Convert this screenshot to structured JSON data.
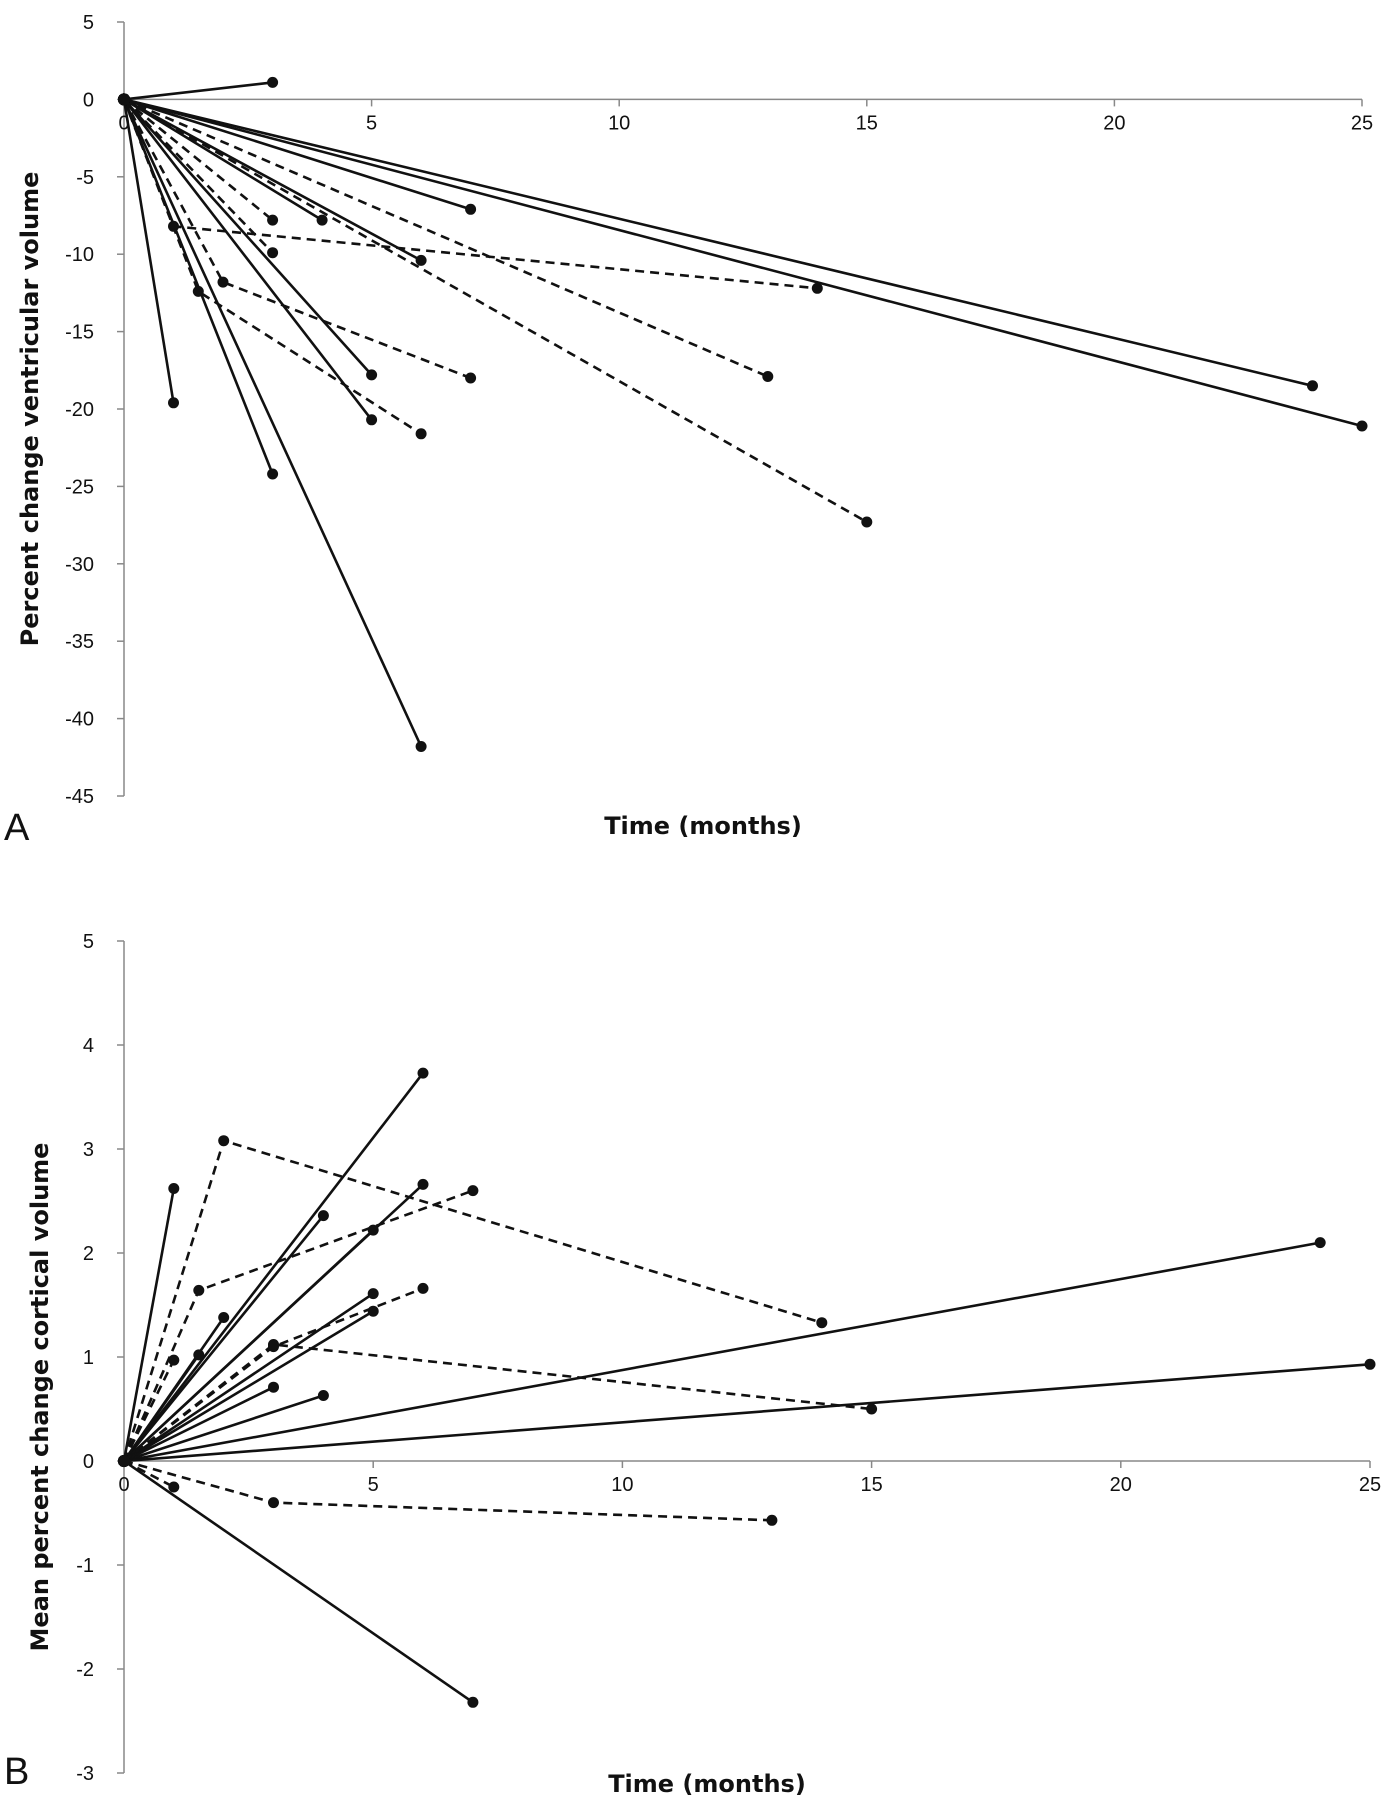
{
  "chart_data": [
    {
      "type": "line",
      "panel_label": "A",
      "xlabel": "Time (months)",
      "ylabel": "Percent change ventricular volume",
      "xlim": [
        0,
        25
      ],
      "ylim": [
        -45,
        5
      ],
      "x_ticks": [
        0,
        5,
        10,
        15,
        20,
        25
      ],
      "y_ticks": [
        5,
        0,
        -5,
        -10,
        -15,
        -20,
        -25,
        -30,
        -35,
        -40,
        -45
      ],
      "x_tick_labels": [
        "0",
        "5",
        "10",
        "15",
        "20",
        "25"
      ],
      "y_tick_labels": [
        "5",
        "0",
        "-5",
        "-10",
        "-15",
        "-20",
        "-25",
        "-30",
        "-35",
        "-40",
        "-45"
      ],
      "grid": false,
      "series": [
        {
          "style": "solid",
          "x": [
            0,
            3
          ],
          "y": [
            0,
            1.1
          ]
        },
        {
          "style": "solid",
          "x": [
            0,
            1
          ],
          "y": [
            0,
            -19.6
          ]
        },
        {
          "style": "solid",
          "x": [
            0,
            3
          ],
          "y": [
            0,
            -24.2
          ]
        },
        {
          "style": "solid",
          "x": [
            0,
            6
          ],
          "y": [
            0,
            -41.8
          ]
        },
        {
          "style": "solid",
          "x": [
            0,
            4
          ],
          "y": [
            0,
            -7.8
          ]
        },
        {
          "style": "solid",
          "x": [
            0,
            7
          ],
          "y": [
            0,
            -7.1
          ]
        },
        {
          "style": "solid",
          "x": [
            0,
            6
          ],
          "y": [
            0,
            -10.4
          ]
        },
        {
          "style": "solid",
          "x": [
            0,
            5
          ],
          "y": [
            0,
            -17.8
          ]
        },
        {
          "style": "solid",
          "x": [
            0,
            5
          ],
          "y": [
            0,
            -20.7
          ]
        },
        {
          "style": "solid",
          "x": [
            0,
            24
          ],
          "y": [
            0,
            -18.5
          ]
        },
        {
          "style": "solid",
          "x": [
            0,
            25
          ],
          "y": [
            0,
            -21.1
          ]
        },
        {
          "style": "dashed",
          "x": [
            0,
            3
          ],
          "y": [
            0,
            -7.8
          ]
        },
        {
          "style": "dashed",
          "x": [
            0,
            3
          ],
          "y": [
            0,
            -9.9
          ]
        },
        {
          "style": "dashed",
          "x": [
            0,
            1,
            14
          ],
          "y": [
            0,
            -8.2,
            -12.2
          ]
        },
        {
          "style": "dashed",
          "x": [
            0,
            1.5,
            6
          ],
          "y": [
            0,
            -12.4,
            -21.6
          ]
        },
        {
          "style": "dashed",
          "x": [
            0,
            2,
            7
          ],
          "y": [
            0,
            -11.8,
            -18.0
          ]
        },
        {
          "style": "dashed",
          "x": [
            0,
            13
          ],
          "y": [
            0,
            -17.9
          ]
        },
        {
          "style": "dashed",
          "x": [
            0,
            15
          ],
          "y": [
            0,
            -27.3
          ]
        }
      ]
    },
    {
      "type": "line",
      "panel_label": "B",
      "xlabel": "Time (months)",
      "ylabel": "Mean percent change cortical volume",
      "xlim": [
        0,
        25
      ],
      "ylim": [
        -3,
        5
      ],
      "x_ticks": [
        0,
        5,
        10,
        15,
        20,
        25
      ],
      "y_ticks": [
        5,
        4,
        3,
        2,
        1,
        0,
        -1,
        -2,
        -3
      ],
      "x_tick_labels": [
        "0",
        "5",
        "10",
        "15",
        "20",
        "25"
      ],
      "y_tick_labels": [
        "5",
        "4",
        "3",
        "2",
        "1",
        "0",
        "-1",
        "-2",
        "-3"
      ],
      "grid": false,
      "series": [
        {
          "style": "solid",
          "x": [
            0,
            1
          ],
          "y": [
            0,
            2.62
          ]
        },
        {
          "style": "solid",
          "x": [
            0,
            6
          ],
          "y": [
            0,
            3.73
          ]
        },
        {
          "style": "solid",
          "x": [
            0,
            4
          ],
          "y": [
            0,
            2.36
          ]
        },
        {
          "style": "solid",
          "x": [
            0,
            6
          ],
          "y": [
            0,
            2.66
          ]
        },
        {
          "style": "solid",
          "x": [
            0,
            5
          ],
          "y": [
            0,
            2.22
          ]
        },
        {
          "style": "solid",
          "x": [
            0,
            5
          ],
          "y": [
            0,
            1.61
          ]
        },
        {
          "style": "solid",
          "x": [
            0,
            5
          ],
          "y": [
            0,
            1.44
          ]
        },
        {
          "style": "solid",
          "x": [
            0,
            3
          ],
          "y": [
            0,
            0.71
          ]
        },
        {
          "style": "solid",
          "x": [
            0,
            4
          ],
          "y": [
            0,
            0.63
          ]
        },
        {
          "style": "solid",
          "x": [
            0,
            2
          ],
          "y": [
            0,
            1.38
          ]
        },
        {
          "style": "solid",
          "x": [
            0,
            1.5
          ],
          "y": [
            0,
            1.02
          ]
        },
        {
          "style": "solid",
          "x": [
            0,
            24
          ],
          "y": [
            0,
            2.1
          ]
        },
        {
          "style": "solid",
          "x": [
            0,
            25
          ],
          "y": [
            0,
            0.93
          ]
        },
        {
          "style": "solid",
          "x": [
            0,
            7
          ],
          "y": [
            0,
            -2.32
          ]
        },
        {
          "style": "dashed",
          "x": [
            0,
            2,
            14
          ],
          "y": [
            0,
            3.08,
            1.33
          ]
        },
        {
          "style": "dashed",
          "x": [
            0,
            1.5,
            7
          ],
          "y": [
            0,
            1.64,
            2.6
          ]
        },
        {
          "style": "dashed",
          "x": [
            0,
            1
          ],
          "y": [
            0,
            0.97
          ]
        },
        {
          "style": "dashed",
          "x": [
            0,
            3,
            6
          ],
          "y": [
            0,
            1.1,
            1.66
          ]
        },
        {
          "style": "dashed",
          "x": [
            0,
            3,
            15
          ],
          "y": [
            0,
            1.12,
            0.5
          ]
        },
        {
          "style": "dashed",
          "x": [
            0,
            1
          ],
          "y": [
            0,
            -0.25
          ]
        },
        {
          "style": "dashed",
          "x": [
            0,
            3,
            13
          ],
          "y": [
            0,
            -0.4,
            -0.57
          ]
        }
      ]
    }
  ]
}
